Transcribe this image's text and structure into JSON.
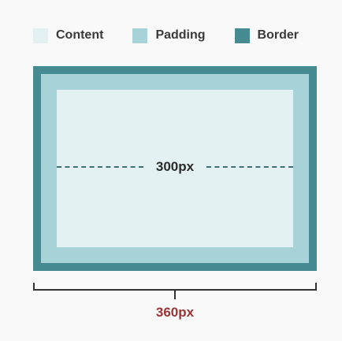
{
  "legend": {
    "items": [
      {
        "label": "Content",
        "color": "#e4f1f2"
      },
      {
        "label": "Padding",
        "color": "#a7d2d7"
      },
      {
        "label": "Border",
        "color": "#468b91"
      }
    ]
  },
  "diagram": {
    "content_width_label": "300px",
    "total_width_label": "360px",
    "colors": {
      "content": "#e4f1f2",
      "padding": "#a7d2d7",
      "border": "#468b91",
      "dash": "#3e6f75",
      "total_label": "#9b3434",
      "background": "#f9f9f9"
    }
  }
}
